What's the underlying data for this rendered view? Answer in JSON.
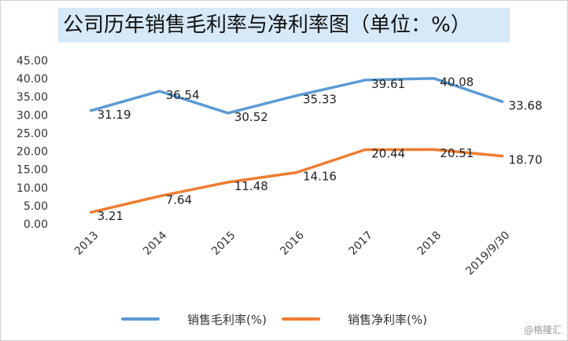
{
  "title": "公司历年销售毛利率与净利率图（单位：%）",
  "watermark": "@格隆汇",
  "chart_data": {
    "type": "line",
    "categories": [
      "2013",
      "2014",
      "2015",
      "2016",
      "2017",
      "2018",
      "2019/9/30"
    ],
    "series": [
      {
        "name": "销售毛利率(%)",
        "color": "#5b9bd5",
        "values": [
          31.19,
          36.54,
          30.52,
          35.33,
          39.61,
          40.08,
          33.68
        ],
        "labels": [
          "31.19",
          "36.54",
          "30.52",
          "35.33",
          "39.61",
          "40.08",
          "33.68"
        ]
      },
      {
        "name": "销售净利率(%)",
        "color": "#ed7d31",
        "values": [
          3.21,
          7.64,
          11.48,
          14.16,
          20.44,
          20.51,
          18.7
        ],
        "labels": [
          "3.21",
          "7.64",
          "11.48",
          "14.16",
          "20.44",
          "20.51",
          "18.70"
        ]
      }
    ],
    "yticks": [
      "0.00",
      "5.00",
      "10.00",
      "15.00",
      "20.00",
      "25.00",
      "30.00",
      "35.00",
      "40.00",
      "45.00"
    ],
    "ylim": [
      0,
      45
    ],
    "grid": false,
    "legend_position": "bottom"
  }
}
